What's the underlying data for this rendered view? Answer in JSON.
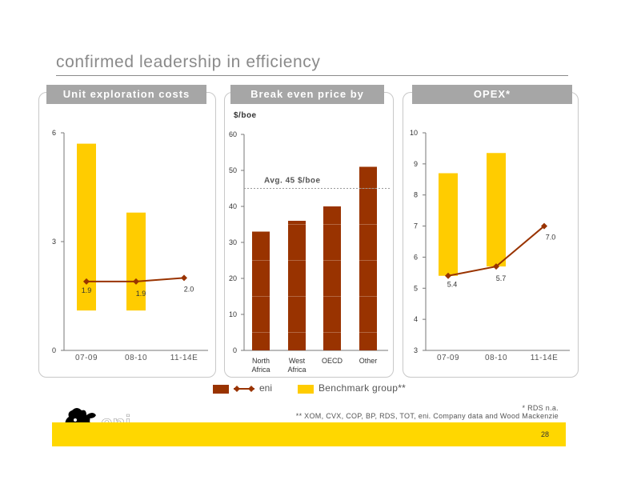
{
  "page": {
    "title": "confirmed leadership in efficiency",
    "page_number": "28"
  },
  "legend": {
    "eni_label": "eni",
    "benchmark_label": "Benchmark group**"
  },
  "footnotes": {
    "note1": "* RDS n.a.",
    "note2": "** XOM, CVX, COP, BP, RDS, TOT, eni. Company data and Wood Mackenzie"
  },
  "colors": {
    "eni": "#993300",
    "benchmark": "#ffcc00",
    "header": "#a6a6a6"
  },
  "chart_data": [
    {
      "type": "bar",
      "panel_title": "Unit exploration costs",
      "categories": [
        "07-09",
        "08-10",
        "11-14E"
      ],
      "benchmark_range": [
        [
          1.1,
          5.7
        ],
        [
          1.1,
          3.8
        ],
        null
      ],
      "series": [
        {
          "name": "eni",
          "values": [
            1.9,
            1.9,
            2.0
          ],
          "labels": [
            "1.9",
            "1.9",
            "2.0"
          ]
        }
      ],
      "ylim": [
        0,
        6
      ],
      "yticks": [
        "0",
        "3",
        "6"
      ]
    },
    {
      "type": "bar",
      "panel_title": "Break even price by region",
      "ylabel": "$/boe",
      "categories": [
        [
          "North",
          "Africa"
        ],
        [
          "West",
          "Africa"
        ],
        [
          "OECD"
        ],
        [
          "Other"
        ]
      ],
      "values": [
        33,
        36,
        40,
        51
      ],
      "annotation": {
        "label": "Avg. 45 $/boe",
        "value": 45
      },
      "ylim": [
        0,
        60
      ],
      "yticks": [
        "0",
        "10",
        "20",
        "30",
        "40",
        "50",
        "60"
      ]
    },
    {
      "type": "bar",
      "panel_title": "OPEX*",
      "categories": [
        "07-09",
        "08-10",
        "11-14E"
      ],
      "benchmark_range": [
        [
          5.4,
          8.7
        ],
        [
          5.7,
          9.35
        ],
        null
      ],
      "series": [
        {
          "name": "eni",
          "values": [
            5.4,
            5.7,
            7.0
          ],
          "labels": [
            "5.4",
            "5.7",
            "7.0"
          ]
        }
      ],
      "ylim": [
        3,
        10
      ],
      "yticks": [
        "3",
        "4",
        "5",
        "6",
        "7",
        "8",
        "9",
        "10"
      ]
    }
  ]
}
